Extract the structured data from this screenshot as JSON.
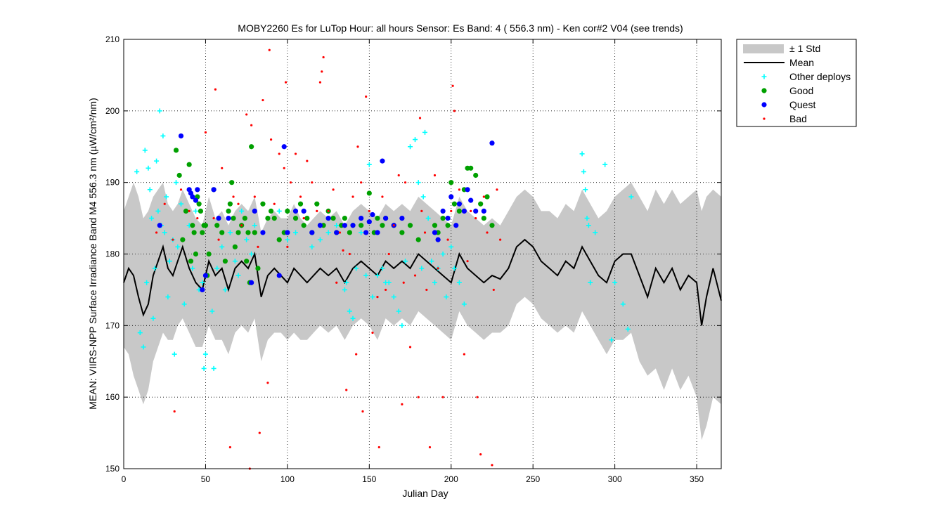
{
  "chart_data": {
    "type": "scatter",
    "title": "MOBY2260   Es for LuTop  Hour: all hours  Sensor: Es Band: 4 ( 556.3 nm)  - Ken cor#2 V04 (see trends)",
    "xlabel": "Julian Day",
    "ylabel": "MEAN: VIIRS-NPP Surface Irradiance Band M4 556.3 nm (µW/cm²/nm)",
    "xlim": [
      0,
      365
    ],
    "ylim": [
      150,
      210
    ],
    "xticks": [
      0,
      50,
      100,
      150,
      200,
      250,
      300,
      350
    ],
    "yticks": [
      150,
      160,
      170,
      180,
      190,
      200,
      210
    ],
    "grid": true,
    "legend_position": "outside-top-right",
    "legend": [
      {
        "label": "± 1 Std",
        "kind": "band",
        "color": "#c8c8c8"
      },
      {
        "label": "Mean",
        "kind": "line",
        "color": "#000000"
      },
      {
        "label": "Other deploys",
        "kind": "plus",
        "color": "#00ffff"
      },
      {
        "label": "Good",
        "kind": "dot",
        "color": "#00a000"
      },
      {
        "label": "Quest",
        "kind": "dot",
        "color": "#0000ff"
      },
      {
        "label": "Bad",
        "kind": "small-dot",
        "color": "#ff0000"
      }
    ],
    "mean": {
      "x": [
        0,
        3,
        6,
        9,
        12,
        15,
        18,
        21,
        24,
        27,
        30,
        33,
        36,
        40,
        44,
        48,
        52,
        56,
        60,
        64,
        68,
        72,
        76,
        80,
        84,
        88,
        92,
        96,
        100,
        104,
        108,
        112,
        116,
        120,
        125,
        130,
        135,
        140,
        145,
        150,
        155,
        160,
        165,
        170,
        175,
        180,
        185,
        190,
        195,
        200,
        205,
        210,
        215,
        220,
        225,
        230,
        235,
        240,
        245,
        250,
        255,
        260,
        265,
        270,
        275,
        280,
        285,
        290,
        295,
        300,
        305,
        310,
        315,
        320,
        325,
        330,
        335,
        340,
        345,
        350,
        353,
        356,
        360,
        365
      ],
      "y": [
        176,
        178,
        177,
        174,
        171.5,
        173,
        177,
        179,
        181,
        178,
        177,
        179,
        181,
        178,
        176,
        175,
        179,
        177,
        178,
        175,
        178,
        179,
        178,
        180,
        174,
        177,
        178,
        177,
        176,
        178,
        177,
        176,
        177,
        178,
        177,
        178,
        176,
        178,
        179,
        178,
        177,
        179,
        178,
        179,
        178,
        180,
        179,
        178,
        177,
        176,
        180,
        178,
        177,
        176,
        177,
        176.5,
        178,
        181,
        182,
        181,
        179,
        178,
        177,
        179,
        178,
        181,
        179,
        177,
        176,
        179,
        180,
        180,
        177,
        174,
        178,
        176,
        178,
        175,
        177,
        176,
        170,
        174,
        178,
        173.5
      ]
    },
    "std_band": {
      "x": [
        0,
        3,
        6,
        9,
        12,
        15,
        18,
        21,
        24,
        27,
        30,
        33,
        36,
        40,
        44,
        48,
        52,
        56,
        60,
        64,
        68,
        72,
        76,
        80,
        84,
        88,
        92,
        96,
        100,
        104,
        108,
        112,
        116,
        120,
        125,
        130,
        135,
        140,
        145,
        150,
        155,
        160,
        165,
        170,
        175,
        180,
        185,
        190,
        195,
        200,
        205,
        210,
        215,
        220,
        225,
        230,
        235,
        240,
        245,
        250,
        255,
        260,
        265,
        270,
        275,
        280,
        285,
        290,
        295,
        300,
        305,
        310,
        315,
        320,
        325,
        330,
        335,
        340,
        345,
        350,
        353,
        356,
        360,
        365
      ],
      "upper": [
        186,
        188,
        190,
        188,
        185,
        186,
        188,
        189,
        190,
        187,
        186,
        187,
        189,
        187,
        185,
        184,
        188,
        185,
        186,
        184,
        186,
        187,
        186,
        188,
        183,
        185,
        186,
        185,
        185,
        187,
        185,
        184,
        185,
        186,
        185,
        186,
        184,
        186,
        187,
        186,
        185,
        187,
        186,
        187,
        186,
        188,
        187,
        186,
        185,
        184,
        188,
        186,
        185,
        184,
        185,
        184,
        186,
        188,
        189,
        188,
        186,
        186,
        185,
        187,
        186,
        189,
        187,
        185,
        186,
        188,
        189,
        190,
        188,
        186,
        189,
        187,
        189,
        187,
        188,
        189,
        186,
        188,
        189,
        188
      ],
      "lower": [
        167,
        166,
        163,
        161,
        159,
        161,
        165,
        167,
        169,
        168,
        168,
        170,
        171,
        169,
        167,
        167,
        170,
        168,
        168,
        166,
        169,
        170,
        169,
        171,
        165,
        168,
        169,
        169,
        168,
        169,
        168,
        168,
        169,
        170,
        169,
        170,
        168,
        170,
        171,
        170,
        168,
        171,
        170,
        171,
        170,
        172,
        171,
        170,
        169,
        168,
        172,
        170,
        169,
        168,
        169,
        169,
        170,
        173,
        174,
        173,
        171,
        170,
        169,
        170,
        169,
        172,
        170,
        168,
        166,
        168,
        168,
        169,
        165,
        163,
        164,
        161,
        164,
        161,
        163,
        160,
        154,
        156,
        160,
        159
      ]
    },
    "series": [
      {
        "name": "Other deploys",
        "marker": "plus",
        "x": [
          8,
          10,
          12,
          13,
          14,
          15,
          16,
          17,
          18,
          19,
          20,
          21,
          22,
          23,
          24,
          25,
          26,
          27,
          28,
          30,
          31,
          32,
          33,
          35,
          37,
          40,
          42,
          44,
          46,
          48,
          49,
          50,
          52,
          54,
          55,
          57,
          60,
          62,
          65,
          68,
          70,
          72,
          75,
          78,
          80,
          95,
          100,
          105,
          110,
          115,
          120,
          125,
          130,
          135,
          136,
          138,
          140,
          142,
          145,
          148,
          150,
          152,
          155,
          158,
          160,
          162,
          165,
          168,
          170,
          172,
          175,
          178,
          180,
          182,
          183,
          184,
          186,
          188,
          190,
          192,
          195,
          197,
          200,
          202,
          205,
          208,
          280,
          281,
          282,
          283,
          284,
          285,
          288,
          294,
          298,
          300,
          305,
          308,
          310
        ],
        "y": [
          191.5,
          169,
          167,
          194.5,
          176,
          192,
          189,
          185,
          171,
          178,
          193,
          186,
          200,
          184,
          196.5,
          183,
          188,
          174,
          179,
          182,
          166,
          190,
          181,
          187,
          173,
          184,
          178,
          186,
          175,
          176,
          164,
          166,
          180,
          172,
          164,
          178,
          181,
          175,
          183,
          179,
          177,
          186,
          182,
          180,
          184,
          186,
          182,
          183,
          184,
          181,
          182,
          183,
          184,
          175,
          176,
          172,
          171,
          178,
          183,
          177,
          192.5,
          174,
          177,
          178,
          176,
          176,
          174,
          172,
          170,
          179,
          195,
          196,
          190,
          178,
          188,
          197,
          185,
          179,
          176,
          178,
          180,
          174,
          181,
          178,
          176,
          173,
          194,
          191.5,
          189,
          185,
          184,
          176,
          183,
          192.5,
          168,
          176,
          173,
          169.5,
          188
        ]
      },
      {
        "name": "Good",
        "marker": "dot",
        "x": [
          32,
          34,
          36,
          38,
          40,
          41,
          42,
          43,
          44,
          45,
          46,
          47,
          48,
          49,
          50,
          51,
          52,
          55,
          57,
          60,
          62,
          64,
          65,
          66,
          67,
          68,
          70,
          72,
          74,
          75,
          76,
          77,
          78,
          80,
          82,
          85,
          88,
          90,
          92,
          95,
          98,
          100,
          105,
          108,
          110,
          112,
          115,
          118,
          120,
          122,
          125,
          128,
          130,
          133,
          135,
          138,
          140,
          145,
          150,
          153,
          155,
          158,
          160,
          165,
          170,
          175,
          180,
          190,
          192,
          195,
          198,
          200,
          202,
          205,
          208,
          210,
          212,
          215,
          218,
          220,
          222,
          225
        ],
        "y": [
          194.5,
          191,
          182,
          186,
          192.5,
          179,
          184,
          183,
          180,
          188,
          187,
          186,
          183,
          184,
          184,
          177,
          180,
          189,
          184,
          183,
          179,
          186,
          187,
          190,
          185,
          181,
          183,
          184,
          185,
          179,
          183,
          176,
          195,
          183,
          178,
          187,
          185,
          186,
          185,
          182,
          183,
          186,
          185,
          187,
          184,
          185,
          183,
          187,
          184,
          184,
          186,
          185,
          183,
          184,
          185,
          183,
          184,
          184,
          188.5,
          183,
          185,
          184,
          185,
          184,
          183,
          184,
          182,
          184,
          183,
          185,
          184,
          190,
          187,
          186,
          189,
          192,
          192,
          191,
          187,
          185,
          188,
          184
        ]
      },
      {
        "name": "Quest",
        "marker": "dot",
        "x": [
          22,
          35,
          40,
          41,
          42,
          44,
          45,
          48,
          50,
          55,
          58,
          64,
          78,
          80,
          85,
          95,
          98,
          100,
          105,
          110,
          115,
          120,
          125,
          130,
          135,
          140,
          145,
          148,
          150,
          152,
          155,
          158,
          160,
          165,
          170,
          190,
          192,
          195,
          198,
          200,
          203,
          205,
          208,
          210,
          212,
          215,
          220,
          225
        ],
        "y": [
          184,
          196.5,
          189,
          188.5,
          188,
          187.5,
          189,
          175,
          177,
          189,
          185,
          185,
          176,
          186,
          183,
          177,
          195,
          183,
          186,
          186,
          183,
          184,
          185,
          183,
          184,
          184,
          185,
          183,
          184.5,
          185.5,
          183,
          193,
          185,
          184,
          185,
          183,
          182,
          186,
          185,
          188,
          184,
          187,
          186,
          189,
          187.5,
          186,
          186,
          195.5
        ]
      },
      {
        "name": "Bad",
        "marker": "small-dot",
        "x": [
          20,
          25,
          30,
          31,
          35,
          40,
          45,
          50,
          55,
          56,
          58,
          60,
          65,
          67,
          70,
          72,
          75,
          77,
          78,
          80,
          82,
          83,
          85,
          88,
          89,
          90,
          92,
          95,
          98,
          99,
          100,
          102,
          105,
          108,
          110,
          112,
          115,
          118,
          120,
          121,
          122,
          125,
          128,
          130,
          132,
          134,
          136,
          138,
          140,
          142,
          143,
          145,
          146,
          148,
          150,
          152,
          155,
          156,
          158,
          160,
          162,
          165,
          168,
          170,
          171,
          172,
          175,
          178,
          180,
          181,
          182,
          184,
          185,
          187,
          190,
          192,
          195,
          198,
          200,
          201,
          202,
          205,
          208,
          210,
          212,
          215,
          216,
          218,
          220,
          222,
          225,
          226,
          228,
          230
        ],
        "y": [
          183,
          187,
          182,
          158,
          189,
          186,
          185,
          197,
          185,
          203,
          182,
          192,
          153,
          188,
          187,
          184,
          199.5,
          150,
          198,
          188,
          181,
          155,
          201.5,
          162,
          208.5,
          196,
          187,
          194,
          192,
          204,
          181,
          190,
          194,
          188,
          185,
          193,
          190,
          186,
          204,
          205.5,
          207.5,
          186,
          189,
          176,
          183,
          180.5,
          161,
          180,
          188,
          166,
          195,
          190,
          158,
          202,
          186,
          169,
          174,
          153,
          188,
          175,
          180,
          184,
          191,
          159,
          176,
          190,
          167,
          177,
          160,
          199,
          186,
          183,
          175,
          153,
          191,
          178,
          160,
          182,
          186,
          203.5,
          200,
          189,
          166,
          179,
          186,
          185,
          160,
          152,
          188,
          183,
          150.5,
          175,
          189,
          182
        ]
      }
    ]
  }
}
